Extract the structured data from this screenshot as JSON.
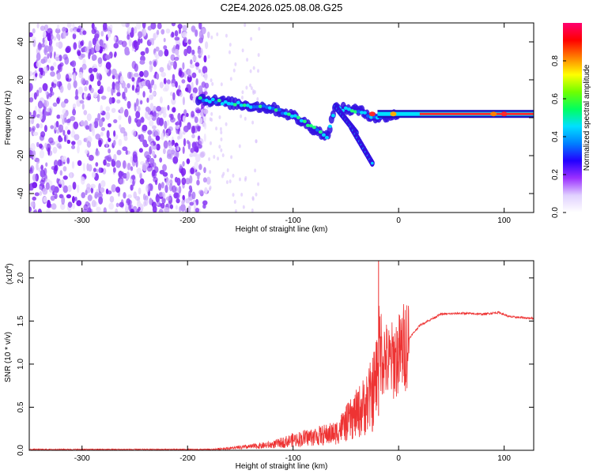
{
  "title": "C2E4.2026.025.08.08.G25",
  "colors": {
    "axis": "#000000",
    "snr_line": "#ee3333",
    "scatter_base": "#7a1cf0",
    "background": "#ffffff"
  },
  "chart_data": [
    {
      "type": "heatmap",
      "name": "spectrogram",
      "xlabel": "Height of straight line (km)",
      "ylabel": "Frequency (Hz)",
      "xlim": [
        -350,
        128
      ],
      "ylim": [
        -50,
        50
      ],
      "xticks": [
        -300,
        -200,
        -100,
        0,
        100
      ],
      "yticks": [
        -40,
        -20,
        0,
        20,
        40
      ],
      "noise_region_x": [
        -350,
        -180
      ],
      "signal_track": {
        "description_points": [
          {
            "x": -190,
            "y": 10
          },
          {
            "x": -150,
            "y": 7
          },
          {
            "x": -120,
            "y": 5
          },
          {
            "x": -100,
            "y": 1
          },
          {
            "x": -80,
            "y": -6
          },
          {
            "x": -68,
            "y": -10
          },
          {
            "x": -60,
            "y": 5
          },
          {
            "x": -40,
            "y": 4
          },
          {
            "x": -20,
            "y": 0
          },
          {
            "x": 0,
            "y": 2
          },
          {
            "x": 128,
            "y": 2
          }
        ],
        "branches": [
          {
            "x": [
              -60,
              -40
            ],
            "y": [
              6,
              -8
            ]
          },
          {
            "x": [
              -45,
              -25
            ],
            "y": [
              -5,
              -24
            ]
          }
        ]
      },
      "colorbar": {
        "label": "Normalized spectral amplitude",
        "range": [
          0.0,
          1.0
        ],
        "ticks": [
          0.0,
          0.2,
          0.4,
          0.6,
          0.8
        ],
        "tick_labels": [
          "0.0",
          "0.2",
          "0.4",
          "0.6",
          "0.8"
        ],
        "colors": [
          "#ffffff",
          "#e0d0ff",
          "#9b30ff",
          "#2200ff",
          "#0080ff",
          "#00e0ff",
          "#00ff60",
          "#70ff00",
          "#ffff00",
          "#ff8000",
          "#ff0000",
          "#ff0070"
        ]
      }
    },
    {
      "type": "line",
      "name": "snr",
      "xlabel": "Height of straight line (km)",
      "ylabel": "SNR (10 * v/v)",
      "y_multiplier_label": "(x10",
      "y_multiplier_exp": "4",
      "y_multiplier_close": ")",
      "xlim": [
        -350,
        128
      ],
      "ylim": [
        0,
        2.2
      ],
      "xticks": [
        -300,
        -200,
        -100,
        0,
        100
      ],
      "yticks": [
        0.0,
        0.5,
        1.0,
        1.5,
        2.0
      ],
      "ytick_labels": [
        "0.0",
        "0.5",
        "1.0",
        "1.5",
        "2.0"
      ],
      "envelope": [
        {
          "x": -350,
          "y": 0.01
        },
        {
          "x": -180,
          "y": 0.01
        },
        {
          "x": -150,
          "y": 0.04
        },
        {
          "x": -120,
          "y": 0.08
        },
        {
          "x": -100,
          "y": 0.15
        },
        {
          "x": -80,
          "y": 0.2
        },
        {
          "x": -60,
          "y": 0.25
        },
        {
          "x": -45,
          "y": 0.45
        },
        {
          "x": -35,
          "y": 0.6
        },
        {
          "x": -25,
          "y": 0.8
        },
        {
          "x": -18,
          "y": 1.2
        },
        {
          "x": -10,
          "y": 1.0
        },
        {
          "x": 0,
          "y": 1.1
        },
        {
          "x": 10,
          "y": 1.3
        },
        {
          "x": 20,
          "y": 1.45
        },
        {
          "x": 40,
          "y": 1.58
        },
        {
          "x": 60,
          "y": 1.59
        },
        {
          "x": 80,
          "y": 1.58
        },
        {
          "x": 95,
          "y": 1.6
        },
        {
          "x": 105,
          "y": 1.55
        },
        {
          "x": 128,
          "y": 1.53
        }
      ],
      "spike": {
        "x": -19,
        "y": 2.2
      }
    }
  ]
}
